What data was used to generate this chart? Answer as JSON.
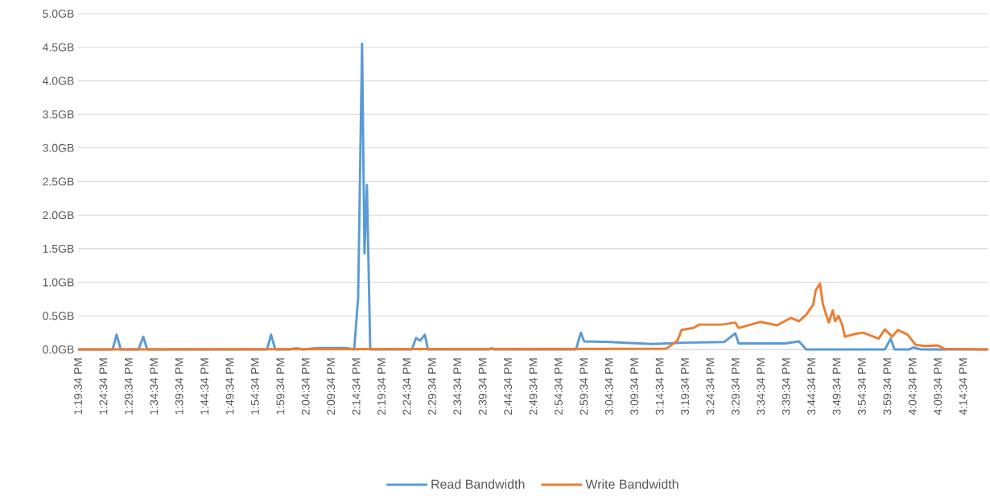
{
  "chart_data": {
    "type": "line",
    "xlim": [
      13.3261,
      16.3261
    ],
    "ylim": [
      0,
      5
    ],
    "grid": "y",
    "legend": "bottom",
    "marker": "none",
    "line_style": "solid",
    "yticks": [
      {
        "value": 0,
        "label": "0.0GB"
      },
      {
        "value": 0.5,
        "label": "0.5GB"
      },
      {
        "value": 1,
        "label": "1.0GB"
      },
      {
        "value": 1.5,
        "label": "1.5GB"
      },
      {
        "value": 2,
        "label": "2.0GB"
      },
      {
        "value": 2.5,
        "label": "2.5GB"
      },
      {
        "value": 3,
        "label": "3.0GB"
      },
      {
        "value": 3.5,
        "label": "3.5GB"
      },
      {
        "value": 4,
        "label": "4.0GB"
      },
      {
        "value": 4.5,
        "label": "4.5GB"
      },
      {
        "value": 5,
        "label": "5.0GB"
      }
    ],
    "xticks": [
      {
        "value": 13.3261,
        "label": "1:19:34 PM"
      },
      {
        "value": 13.4094,
        "label": "1:24:34 PM"
      },
      {
        "value": 13.4928,
        "label": "1:29:34 PM"
      },
      {
        "value": 13.5761,
        "label": "1:34:34 PM"
      },
      {
        "value": 13.6594,
        "label": "1:39:34 PM"
      },
      {
        "value": 13.7428,
        "label": "1:44:34 PM"
      },
      {
        "value": 13.8261,
        "label": "1:49:34 PM"
      },
      {
        "value": 13.9094,
        "label": "1:54:34 PM"
      },
      {
        "value": 13.9928,
        "label": "1:59:34 PM"
      },
      {
        "value": 14.0761,
        "label": "2:04:34 PM"
      },
      {
        "value": 14.1594,
        "label": "2:09:34 PM"
      },
      {
        "value": 14.2428,
        "label": "2:14:34 PM"
      },
      {
        "value": 14.3261,
        "label": "2:19:34 PM"
      },
      {
        "value": 14.4094,
        "label": "2:24:34 PM"
      },
      {
        "value": 14.4928,
        "label": "2:29:34 PM"
      },
      {
        "value": 14.5761,
        "label": "2:34:34 PM"
      },
      {
        "value": 14.6594,
        "label": "2:39:34 PM"
      },
      {
        "value": 14.7428,
        "label": "2:44:34 PM"
      },
      {
        "value": 14.8261,
        "label": "2:49:34 PM"
      },
      {
        "value": 14.9094,
        "label": "2:54:34 PM"
      },
      {
        "value": 14.9928,
        "label": "2:59:34 PM"
      },
      {
        "value": 15.0761,
        "label": "3:04:34 PM"
      },
      {
        "value": 15.1594,
        "label": "3:09:34 PM"
      },
      {
        "value": 15.2428,
        "label": "3:14:34 PM"
      },
      {
        "value": 15.3261,
        "label": "3:19:34 PM"
      },
      {
        "value": 15.4094,
        "label": "3:24:34 PM"
      },
      {
        "value": 15.4928,
        "label": "3:29:34 PM"
      },
      {
        "value": 15.5761,
        "label": "3:34:34 PM"
      },
      {
        "value": 15.6594,
        "label": "3:39:34 PM"
      },
      {
        "value": 15.7428,
        "label": "3:44:34 PM"
      },
      {
        "value": 15.8261,
        "label": "3:49:34 PM"
      },
      {
        "value": 15.9094,
        "label": "3:54:34 PM"
      },
      {
        "value": 15.9928,
        "label": "3:59:34 PM"
      },
      {
        "value": 16.0761,
        "label": "4:04:34 PM"
      },
      {
        "value": 16.1594,
        "label": "4:09:34 PM"
      },
      {
        "value": 16.2428,
        "label": "4:14:34 PM"
      }
    ],
    "series": [
      {
        "name": "Read Bandwidth",
        "color": "#5b9bd5",
        "x": [
          13.3261,
          13.44,
          13.453,
          13.467,
          13.525,
          13.541,
          13.554,
          13.949,
          13.962,
          13.976,
          14.023,
          14.045,
          14.066,
          14.116,
          14.209,
          14.236,
          14.249,
          14.262,
          14.27,
          14.278,
          14.289,
          14.426,
          14.44,
          14.453,
          14.469,
          14.479,
          14.681,
          14.689,
          14.697,
          14.967,
          14.983,
          14.994,
          15.084,
          15.219,
          15.323,
          15.455,
          15.492,
          15.503,
          15.657,
          15.702,
          15.726,
          15.985,
          16.004,
          16.017,
          16.065,
          16.078,
          16.105,
          16.325
        ],
        "values": [
          0,
          0,
          0.22,
          0,
          0,
          0.19,
          0,
          0,
          0.22,
          0,
          0,
          0.02,
          0,
          0.02,
          0.02,
          0,
          0.77,
          4.55,
          1.43,
          2.45,
          0,
          0,
          0.17,
          0.13,
          0.22,
          0,
          0,
          0.02,
          0,
          0,
          0.25,
          0.12,
          0.11,
          0.08,
          0.1,
          0.11,
          0.24,
          0.09,
          0.09,
          0.12,
          0,
          0,
          0.16,
          0,
          0,
          0.03,
          0,
          0
        ]
      },
      {
        "name": "Write Bandwidth",
        "color": "#ed7d31",
        "x": [
          13.3261,
          15.264,
          15.301,
          15.315,
          15.354,
          15.373,
          15.447,
          15.492,
          15.503,
          15.574,
          15.63,
          15.675,
          15.702,
          15.726,
          15.749,
          15.757,
          15.771,
          15.781,
          15.8,
          15.813,
          15.821,
          15.832,
          15.845,
          15.853,
          15.885,
          15.914,
          15.964,
          15.985,
          16.009,
          16.028,
          16.06,
          16.086,
          16.115,
          16.16,
          16.181,
          16.325
        ],
        "values": [
          0,
          0.01,
          0.13,
          0.29,
          0.32,
          0.37,
          0.37,
          0.4,
          0.32,
          0.41,
          0.36,
          0.47,
          0.42,
          0.52,
          0.67,
          0.88,
          0.98,
          0.67,
          0.4,
          0.58,
          0.42,
          0.5,
          0.36,
          0.19,
          0.23,
          0.25,
          0.16,
          0.3,
          0.19,
          0.29,
          0.22,
          0.07,
          0.05,
          0.06,
          0.01,
          0
        ]
      }
    ]
  }
}
